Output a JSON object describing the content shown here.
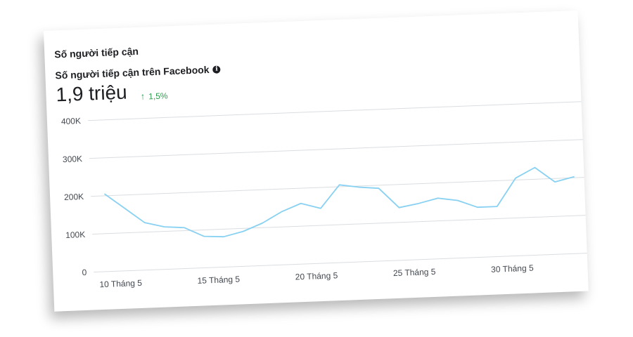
{
  "section_title": "Số người tiếp cận",
  "metric": {
    "title": "Số người tiếp cận trên Facebook",
    "info_icon": "info-icon",
    "value": "1,9 triệu",
    "change_icon": "arrow-up-icon",
    "change": "1,5%",
    "change_color": "#2e9a4f"
  },
  "chart_data": {
    "type": "line",
    "title": "",
    "xlabel": "",
    "ylabel": "",
    "ylim": [
      0,
      400000
    ],
    "y_ticks": [
      0,
      100000,
      200000,
      300000,
      400000
    ],
    "y_tick_labels": [
      "0",
      "100K",
      "200K",
      "300K",
      "400K"
    ],
    "x_tick_labels": [
      "10 Tháng 5",
      "15 Tháng 5",
      "20 Tháng 5",
      "25 Tháng 5",
      "30 Tháng 5"
    ],
    "x_tick_positions": [
      10,
      15,
      20,
      25,
      30
    ],
    "grid": true,
    "line_color": "#88d1f2",
    "series": [
      {
        "x": [
          10,
          11,
          12,
          13,
          14,
          15,
          16,
          17,
          18,
          19,
          20,
          21,
          22,
          23,
          24,
          25,
          26,
          27,
          28,
          29,
          30,
          31,
          32,
          33,
          34
        ],
        "values": [
          205000,
          165000,
          125000,
          112000,
          108000,
          83000,
          80000,
          92000,
          112000,
          140000,
          160000,
          145000,
          205000,
          197000,
          192000,
          139000,
          148000,
          160000,
          152000,
          132000,
          132000,
          205000,
          231000,
          191000,
          203000
        ]
      }
    ]
  }
}
